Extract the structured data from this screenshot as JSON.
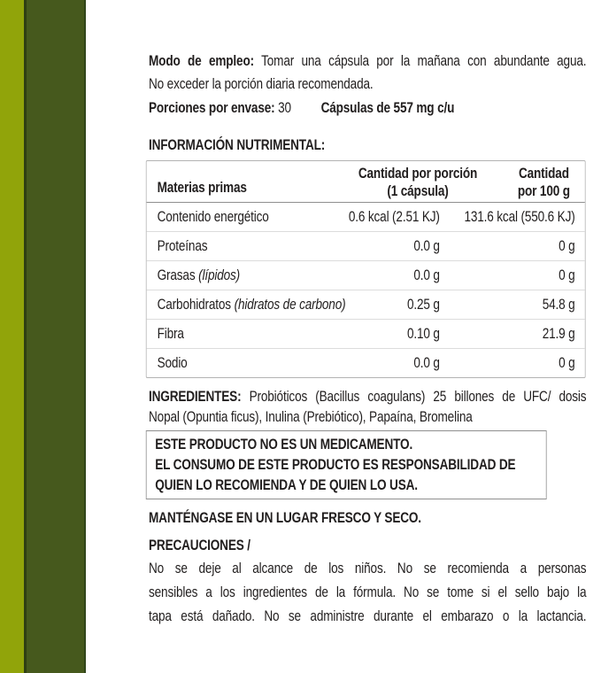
{
  "colors": {
    "stripe_light": "#91a40a",
    "stripe_dark": "#46591d",
    "table_border": "#b3b3b3",
    "text": "#211e1e"
  },
  "usage": {
    "label": "Modo de empleo:",
    "line1": "Tomar una cápsula por la mañana con abundante agua.",
    "line2": "No exceder la porción diaria recomendada."
  },
  "servings": {
    "label": "Porciones por envase:",
    "value": "30",
    "capsules": "Cápsulas de 557 mg c/u"
  },
  "nutrition": {
    "title": "INFORMACIÓN NUTRIMENTAL:",
    "table": {
      "col1_header": "Materias primas",
      "col2_header_line1": "Cantidad por porción",
      "col2_header_line2": "(1 cápsula)",
      "col3_header_line1": "Cantidad",
      "col3_header_line2": "por 100 g",
      "rows": [
        {
          "label": "Contenido energético",
          "label_italic": "",
          "portion": "0.6 kcal (2.51 KJ)",
          "per100": "131.6 kcal (550.6 KJ)"
        },
        {
          "label": "Proteínas",
          "label_italic": "",
          "portion": "0.0 g",
          "per100": "0 g"
        },
        {
          "label": "Grasas ",
          "label_italic": "(lípidos)",
          "portion": "0.0 g",
          "per100": "0 g"
        },
        {
          "label": "Carbohidratos ",
          "label_italic": "(hidratos de carbono)",
          "portion": "0.25 g",
          "per100": "54.8 g"
        },
        {
          "label": "Fibra",
          "label_italic": "",
          "portion": "0.10 g",
          "per100": "21.9 g"
        },
        {
          "label": "Sodio",
          "label_italic": "",
          "portion": "0.0 g",
          "per100": "0 g"
        }
      ]
    }
  },
  "ingredients": {
    "label": "INGREDIENTES:",
    "line1": "Probióticos (Bacillus coagulans) 25 billones de UFC/ dosis",
    "line2": "Nopal (Opuntia ficus), Inulina (Prebiótico), Papaína, Bromelina"
  },
  "warning_box": {
    "lines": [
      "ESTE PRODUCTO NO ES UN MEDICAMENTO.",
      "EL CONSUMO DE ESTE PRODUCTO ES RESPONSABILIDAD DE",
      "QUIEN LO RECOMIENDA Y DE QUIEN LO USA."
    ]
  },
  "storage": "MANTÉNGASE EN UN LUGAR FRESCO Y SECO.",
  "precautions": {
    "title": "PRECAUCIONES /",
    "lines": [
      "No se deje al alcance de los niños. No se recomienda a personas",
      "sensibles a los ingredientes de la fórmula. No se tome si el sello bajo la",
      "tapa está dañado. No se administre durante el embarazo o la lactancia."
    ]
  }
}
